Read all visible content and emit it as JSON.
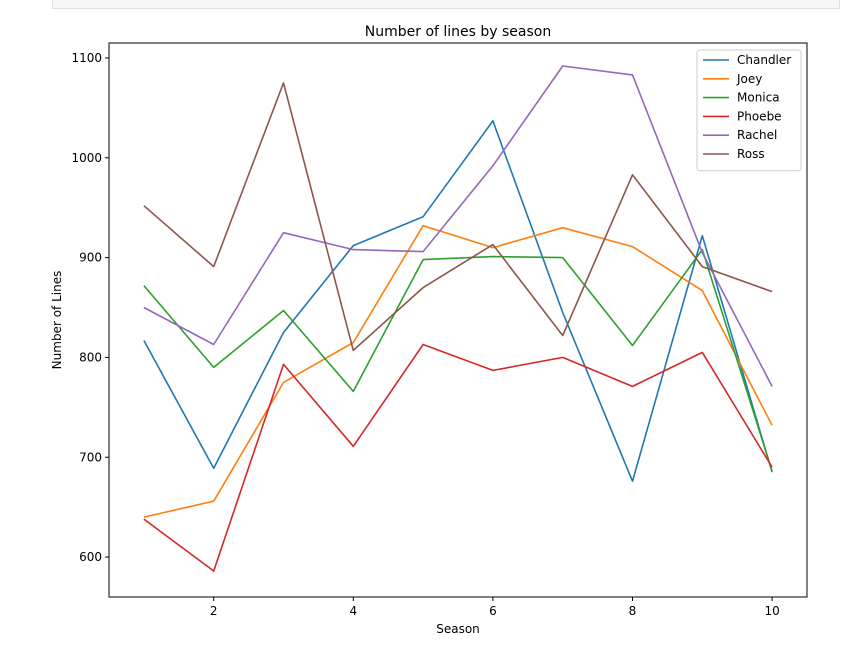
{
  "chart_data": {
    "type": "line",
    "title": "Number of lines by season",
    "xlabel": "Season",
    "ylabel": "Number of Lines",
    "x": [
      1,
      2,
      3,
      4,
      5,
      6,
      7,
      8,
      9,
      10
    ],
    "xlim": [
      0.5,
      10.5
    ],
    "ylim": [
      560,
      1115
    ],
    "xticks": [
      2,
      4,
      6,
      8,
      10
    ],
    "yticks": [
      600,
      700,
      800,
      900,
      1000,
      1100
    ],
    "grid": false,
    "legend_position": "top-right",
    "series": [
      {
        "name": "Chandler",
        "color": "#1f77b4",
        "values": [
          817,
          689,
          825,
          912,
          941,
          1037,
          845,
          676,
          922,
          685
        ]
      },
      {
        "name": "Joey",
        "color": "#ff7f0e",
        "values": [
          640,
          656,
          775,
          815,
          932,
          910,
          930,
          911,
          867,
          732
        ]
      },
      {
        "name": "Monica",
        "color": "#2ca02c",
        "values": [
          872,
          790,
          847,
          766,
          898,
          901,
          900,
          812,
          908,
          686
        ]
      },
      {
        "name": "Phoebe",
        "color": "#d62728",
        "values": [
          638,
          586,
          793,
          711,
          813,
          787,
          800,
          771,
          805,
          690
        ]
      },
      {
        "name": "Rachel",
        "color": "#9467bd",
        "values": [
          850,
          813,
          925,
          908,
          906,
          992,
          1092,
          1083,
          905,
          771
        ]
      },
      {
        "name": "Ross",
        "color": "#8c564b",
        "values": [
          952,
          891,
          1075,
          807,
          870,
          913,
          822,
          983,
          891,
          866
        ]
      }
    ]
  }
}
